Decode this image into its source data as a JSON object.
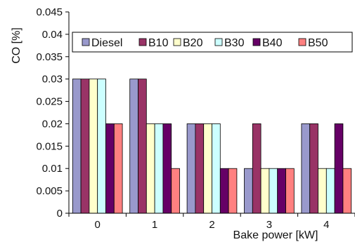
{
  "chart_data": {
    "type": "bar",
    "title": "",
    "xlabel": "Bake power [kW]",
    "ylabel": "CO [%]",
    "categories": [
      "0",
      "1",
      "2",
      "3",
      "4"
    ],
    "ylim": [
      0,
      0.045
    ],
    "yticks": [
      "0",
      "0.005",
      "0.01",
      "0.015",
      "0.02",
      "0.025",
      "0.03",
      "0.035",
      "0.04",
      "0.045"
    ],
    "legend_position": "top",
    "grid": false,
    "series": [
      {
        "name": "Diesel",
        "color": "#9999cc",
        "values": [
          0.03,
          0.03,
          0.02,
          0.01,
          0.02
        ]
      },
      {
        "name": "B10",
        "color": "#993366",
        "values": [
          0.03,
          0.03,
          0.02,
          0.02,
          0.02
        ]
      },
      {
        "name": "B20",
        "color": "#ffffcc",
        "values": [
          0.03,
          0.02,
          0.02,
          0.01,
          0.01
        ]
      },
      {
        "name": "B30",
        "color": "#ccffff",
        "values": [
          0.03,
          0.02,
          0.02,
          0.01,
          0.01
        ]
      },
      {
        "name": "B40",
        "color": "#660066",
        "values": [
          0.02,
          0.02,
          0.01,
          0.01,
          0.02
        ]
      },
      {
        "name": "B50",
        "color": "#ff8080",
        "values": [
          0.02,
          0.01,
          0.01,
          0.01,
          0.01
        ]
      }
    ]
  }
}
